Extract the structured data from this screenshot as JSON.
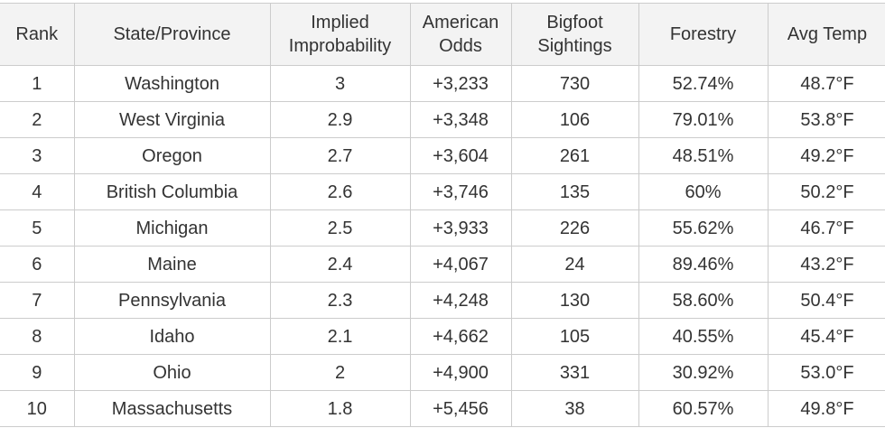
{
  "table": {
    "headers": [
      {
        "lines": [
          "Rank"
        ]
      },
      {
        "lines": [
          "State/Province"
        ]
      },
      {
        "lines": [
          "Implied",
          "Improbability"
        ]
      },
      {
        "lines": [
          "American",
          "Odds"
        ]
      },
      {
        "lines": [
          "Bigfoot",
          "Sightings"
        ]
      },
      {
        "lines": [
          "Forestry"
        ]
      },
      {
        "lines": [
          "Avg Temp"
        ]
      }
    ],
    "rows": [
      [
        "1",
        "Washington",
        "3",
        "+3,233",
        "730",
        "52.74%",
        "48.7°F"
      ],
      [
        "2",
        "West Virginia",
        "2.9",
        "+3,348",
        "106",
        "79.01%",
        "53.8°F"
      ],
      [
        "3",
        "Oregon",
        "2.7",
        "+3,604",
        "261",
        "48.51%",
        "49.2°F"
      ],
      [
        "4",
        "British Columbia",
        "2.6",
        "+3,746",
        "135",
        "60%",
        "50.2°F"
      ],
      [
        "5",
        "Michigan",
        "2.5",
        "+3,933",
        "226",
        "55.62%",
        "46.7°F"
      ],
      [
        "6",
        "Maine",
        "2.4",
        "+4,067",
        "24",
        "89.46%",
        "43.2°F"
      ],
      [
        "7",
        "Pennsylvania",
        "2.3",
        "+4,248",
        "130",
        "58.60%",
        "50.4°F"
      ],
      [
        "8",
        "Idaho",
        "2.1",
        "+4,662",
        "105",
        "40.55%",
        "45.4°F"
      ],
      [
        "9",
        "Ohio",
        "2",
        "+4,900",
        "331",
        "30.92%",
        "53.0°F"
      ],
      [
        "10",
        "Massachusetts",
        "1.8",
        "+5,456",
        "38",
        "60.57%",
        "49.8°F"
      ]
    ]
  }
}
